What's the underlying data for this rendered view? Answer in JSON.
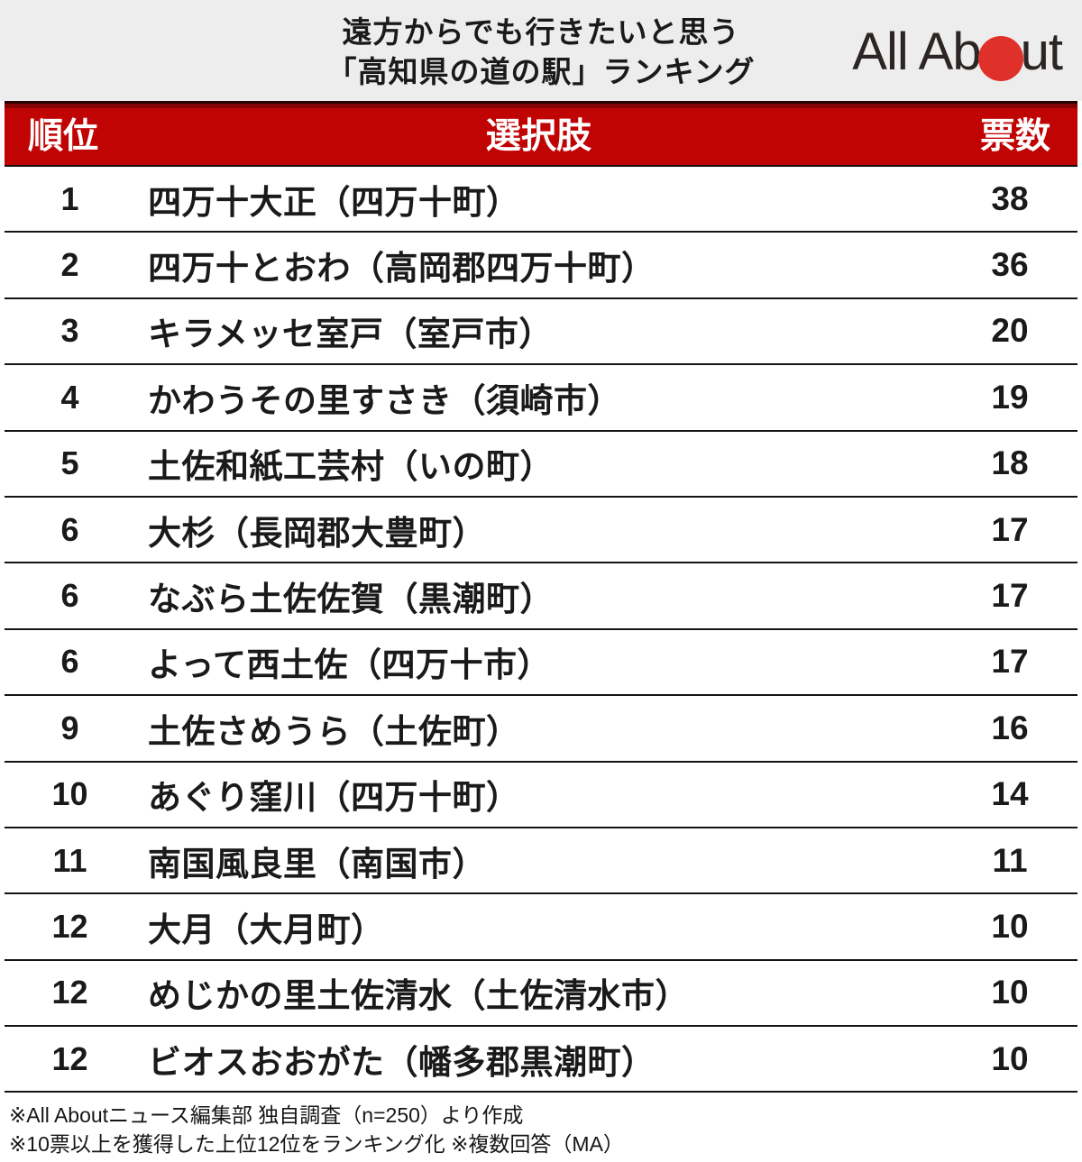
{
  "header": {
    "title_line1": "遠方からでも行きたいと思う",
    "title_line2": "「高知県の道の駅」ランキング",
    "logo": {
      "text_before_dot": "All Ab",
      "text_after_dot": "ut",
      "dot_icon": "red-circle-o",
      "dot_color": "#e0302a"
    }
  },
  "table": {
    "columns": {
      "rank": "順位",
      "choice": "選択肢",
      "votes": "票数"
    },
    "rows": [
      {
        "rank": "1",
        "name": "四万十大正（四万十町）",
        "votes": "38"
      },
      {
        "rank": "2",
        "name": "四万十とおわ（高岡郡四万十町）",
        "votes": "36"
      },
      {
        "rank": "3",
        "name": "キラメッセ室戸（室戸市）",
        "votes": "20"
      },
      {
        "rank": "4",
        "name": "かわうその里すさき（須崎市）",
        "votes": "19"
      },
      {
        "rank": "5",
        "name": "土佐和紙工芸村（いの町）",
        "votes": "18"
      },
      {
        "rank": "6",
        "name": "大杉（長岡郡大豊町）",
        "votes": "17"
      },
      {
        "rank": "6",
        "name": "なぶら土佐佐賀（黒潮町）",
        "votes": "17"
      },
      {
        "rank": "6",
        "name": "よって西土佐（四万十市）",
        "votes": "17"
      },
      {
        "rank": "9",
        "name": "土佐さめうら（土佐町）",
        "votes": "16"
      },
      {
        "rank": "10",
        "name": "あぐり窪川（四万十町）",
        "votes": "14"
      },
      {
        "rank": "11",
        "name": "南国風良里（南国市）",
        "votes": "11"
      },
      {
        "rank": "12",
        "name": "大月（大月町）",
        "votes": "10"
      },
      {
        "rank": "12",
        "name": "めじかの里土佐清水（土佐清水市）",
        "votes": "10"
      },
      {
        "rank": "12",
        "name": "ビオスおおがた（幡多郡黒潮町）",
        "votes": "10"
      }
    ]
  },
  "footer": {
    "line1": "※All Aboutニュース編集部 独自調査（n=250）より作成",
    "line2": "※10票以上を獲得した上位12位をランキング化 ※複数回答（MA）"
  },
  "colors": {
    "accent_red": "#c00404",
    "accent_red_dark": "#850505",
    "logo_red": "#e0302a",
    "header_gray": "#ededed",
    "row_border": "#141414",
    "text": "#1a1a1a"
  },
  "chart_data": {
    "type": "table",
    "title": "遠方からでも行きたいと思う「高知県の道の駅」ランキング",
    "columns": [
      "順位",
      "選択肢",
      "票数"
    ],
    "categories": [
      "四万十大正（四万十町）",
      "四万十とおわ（高岡郡四万十町）",
      "キラメッセ室戸（室戸市）",
      "かわうその里すさき（須崎市）",
      "土佐和紙工芸村（いの町）",
      "大杉（長岡郡大豊町）",
      "なぶら土佐佐賀（黒潮町）",
      "よって西土佐（四万十市）",
      "土佐さめうら（土佐町）",
      "あぐり窪川（四万十町）",
      "南国風良里（南国市）",
      "大月（大月町）",
      "めじかの里土佐清水（土佐清水市）",
      "ビオスおおがた（幡多郡黒潮町）"
    ],
    "ranks": [
      1,
      2,
      3,
      4,
      5,
      6,
      6,
      6,
      9,
      10,
      11,
      12,
      12,
      12
    ],
    "values": [
      38,
      36,
      20,
      19,
      18,
      17,
      17,
      17,
      16,
      14,
      11,
      10,
      10,
      10
    ],
    "source_note": "All Aboutニュース編集部 独自調査（n=250）より作成",
    "method_note": "10票以上を獲得した上位12位をランキング化 ※複数回答（MA）"
  }
}
